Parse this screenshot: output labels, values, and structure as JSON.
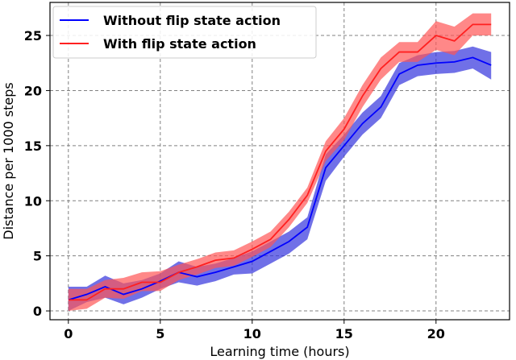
{
  "chart_data": {
    "type": "line",
    "title": "",
    "xlabel": "Learning time (hours)",
    "ylabel": "Distance per 1000 steps",
    "xlim": [
      -1,
      24
    ],
    "ylim": [
      -0.8,
      28
    ],
    "x_ticks": [
      0,
      5,
      10,
      15,
      20
    ],
    "y_ticks": [
      0,
      5,
      10,
      15,
      20,
      25
    ],
    "grid": true,
    "grid_style": "dashed",
    "legend_position": "top-left",
    "x": [
      0,
      1,
      2,
      3,
      4,
      5,
      6,
      7,
      8,
      9,
      10,
      11,
      12,
      13,
      14,
      15,
      16,
      17,
      18,
      19,
      20,
      21,
      22,
      23
    ],
    "series": [
      {
        "name": "Without flip state action",
        "color": "#0000ff",
        "band_color": "#3333dd",
        "values": [
          1.0,
          1.5,
          2.2,
          1.5,
          2.0,
          2.7,
          3.5,
          3.1,
          3.5,
          4.0,
          4.5,
          5.4,
          6.3,
          7.6,
          13.0,
          15.0,
          17.0,
          18.5,
          21.5,
          22.3,
          22.5,
          22.6,
          23.0,
          22.3
        ],
        "upper": [
          2.2,
          2.2,
          3.2,
          2.5,
          2.8,
          3.4,
          4.5,
          4.0,
          4.3,
          4.8,
          5.4,
          6.3,
          7.2,
          8.5,
          14.2,
          16.0,
          18.0,
          19.5,
          22.5,
          23.2,
          23.5,
          23.6,
          24.0,
          23.5
        ],
        "lower": [
          0.0,
          0.8,
          1.2,
          0.6,
          1.2,
          2.0,
          2.6,
          2.3,
          2.7,
          3.3,
          3.4,
          4.3,
          5.2,
          6.5,
          11.8,
          14.0,
          16.0,
          17.5,
          20.5,
          21.3,
          21.5,
          21.6,
          22.0,
          21.0
        ]
      },
      {
        "name": "With flip state action",
        "color": "#ff2020",
        "band_color": "#ff5555",
        "values": [
          1.0,
          1.0,
          2.0,
          2.0,
          2.6,
          2.6,
          3.5,
          4.0,
          4.6,
          4.8,
          5.6,
          6.5,
          8.3,
          10.5,
          14.5,
          16.5,
          19.5,
          22.0,
          23.5,
          23.5,
          25.0,
          24.5,
          26.0,
          26.0
        ],
        "upper": [
          2.0,
          2.0,
          2.8,
          3.0,
          3.5,
          3.6,
          4.2,
          4.7,
          5.3,
          5.5,
          6.3,
          7.2,
          9.0,
          11.2,
          15.4,
          17.5,
          20.5,
          23.0,
          24.4,
          24.4,
          26.3,
          25.8,
          27.0,
          27.0
        ],
        "lower": [
          0.0,
          0.2,
          1.2,
          1.1,
          1.8,
          1.8,
          2.8,
          3.3,
          3.9,
          4.1,
          4.9,
          5.8,
          7.6,
          9.8,
          13.6,
          15.5,
          18.5,
          21.0,
          22.6,
          22.6,
          23.7,
          23.2,
          25.0,
          25.0
        ]
      }
    ]
  }
}
